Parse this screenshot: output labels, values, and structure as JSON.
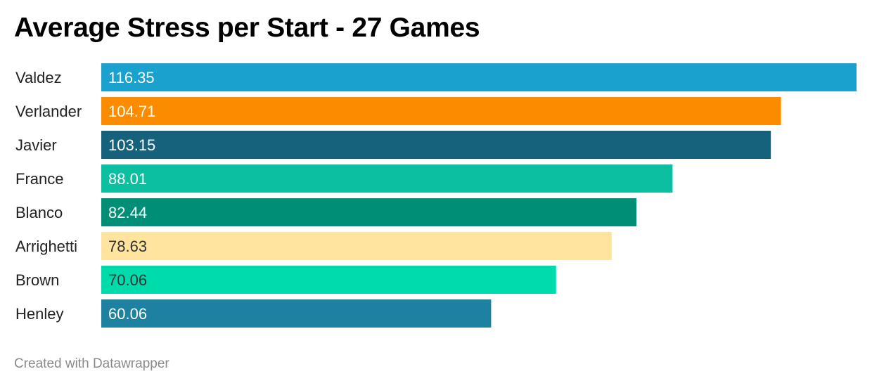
{
  "title": "Average Stress per Start - 27 Games",
  "footer": "Created with Datawrapper",
  "chart_data": {
    "type": "bar",
    "orientation": "horizontal",
    "title": "Average Stress per Start - 27 Games",
    "xlabel": "",
    "ylabel": "",
    "grid": false,
    "legend": "none",
    "categories": [
      "Valdez",
      "Verlander",
      "Javier",
      "France",
      "Blanco",
      "Arrighetti",
      "Brown",
      "Henley"
    ],
    "values": [
      116.35,
      104.71,
      103.15,
      88.01,
      82.44,
      78.63,
      70.06,
      60.06
    ],
    "value_labels": [
      "116.35",
      "104.71",
      "103.15",
      "88.01",
      "82.44",
      "78.63",
      "70.06",
      "60.06"
    ],
    "colors": [
      "#1ba1ce",
      "#fb8c00",
      "#16627c",
      "#0cbfa1",
      "#008f76",
      "#fee49e",
      "#00dbab",
      "#1e81a1"
    ],
    "label_colors": [
      "#ffffff",
      "#ffffff",
      "#ffffff",
      "#ffffff",
      "#ffffff",
      "#333333",
      "#333333",
      "#ffffff"
    ],
    "xlim": [
      0,
      116.35
    ]
  }
}
